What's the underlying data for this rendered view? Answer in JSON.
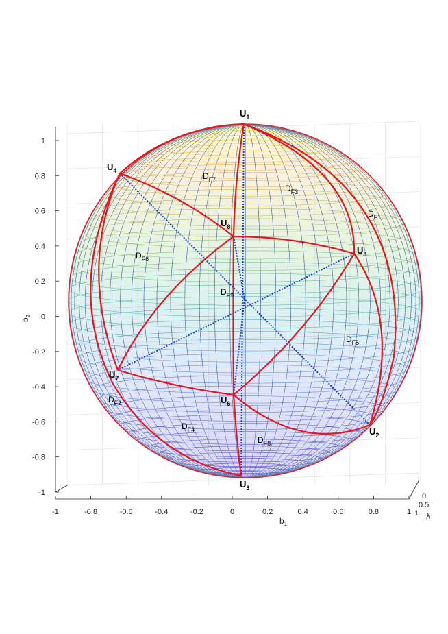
{
  "axes": {
    "b1": {
      "label": "b",
      "sub": "1",
      "ticks": [
        "-1",
        "-0.8",
        "-0.6",
        "-0.4",
        "-0.2",
        "0",
        "0.2",
        "0.4",
        "0.6",
        "0.8",
        "1"
      ]
    },
    "b2": {
      "label": "b",
      "sub": "2",
      "ticks": [
        "1",
        "0.8",
        "0.6",
        "0.4",
        "0.2",
        "0",
        "-0.2",
        "-0.4",
        "-0.6",
        "-0.8",
        "-1"
      ]
    },
    "lambda": {
      "label": "λ",
      "ticks": [
        "0",
        "0.5",
        "1"
      ]
    }
  },
  "colors": {
    "arc": "#e8141e",
    "diagonal": "#1a3fd6",
    "top": "#f5e600",
    "middle": "#3fb8a6",
    "bottom": "#3a1fd0",
    "grid": "#e3e3e3"
  },
  "vertices": [
    {
      "name": "U",
      "sub": "1"
    },
    {
      "name": "U",
      "sub": "2"
    },
    {
      "name": "U",
      "sub": "3"
    },
    {
      "name": "U",
      "sub": "4"
    },
    {
      "name": "U",
      "sub": "5"
    },
    {
      "name": "U",
      "sub": "6"
    },
    {
      "name": "U",
      "sub": "7"
    },
    {
      "name": "U",
      "sub": "8"
    }
  ],
  "regions": [
    {
      "name": "D",
      "sub": "F1"
    },
    {
      "name": "D",
      "sub": "F2"
    },
    {
      "name": "D",
      "sub": "F3"
    },
    {
      "name": "D",
      "sub": "F4"
    },
    {
      "name": "D",
      "sub": "F5"
    },
    {
      "name": "D",
      "sub": "F6"
    },
    {
      "name": "D",
      "sub": "F7"
    },
    {
      "name": "D",
      "sub": "F8"
    },
    {
      "name": "D",
      "sub": "F9"
    }
  ]
}
